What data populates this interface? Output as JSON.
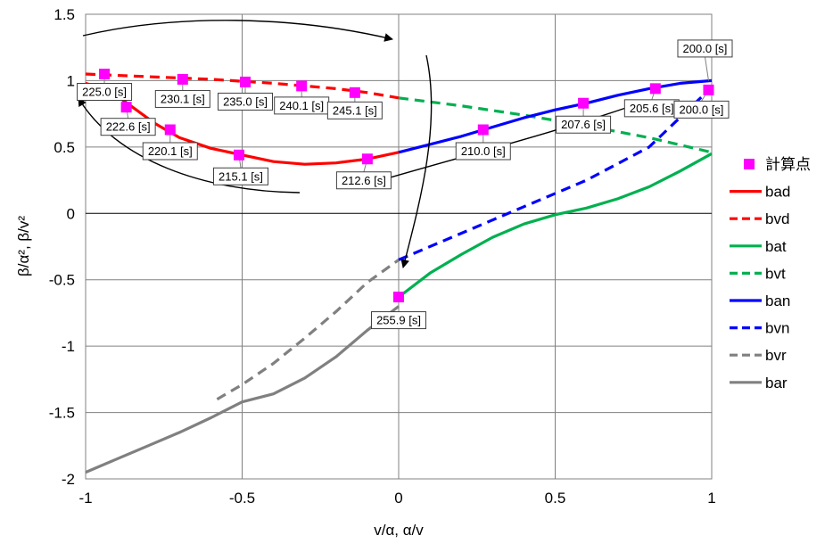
{
  "chart_data": {
    "type": "line",
    "xlabel": "v/α, α/v",
    "ylabel": "β/α², β/v²",
    "xlim": [
      -1,
      1
    ],
    "ylim": [
      -2,
      1.5
    ],
    "xticks": [
      -1,
      -0.5,
      0,
      0.5,
      1
    ],
    "yticks": [
      -2,
      -1.5,
      -1,
      -0.5,
      0,
      0.5,
      1,
      1.5
    ],
    "xtick_labels": [
      "-1",
      "-0.5",
      "0",
      "0.5",
      "1"
    ],
    "ytick_labels": [
      "-2",
      "-1.5",
      "-1",
      "-0.5",
      "0",
      "0.5",
      "1",
      "1.5"
    ],
    "grid": true,
    "legend_position": "right",
    "series": [
      {
        "name": "bad",
        "color": "#ff0000",
        "dash": "solid",
        "x": [
          -1,
          -0.92,
          -0.85,
          -0.78,
          -0.7,
          -0.6,
          -0.5,
          -0.4,
          -0.3,
          -0.2,
          -0.1,
          0
        ],
        "y": [
          0.98,
          0.92,
          0.8,
          0.68,
          0.57,
          0.49,
          0.44,
          0.39,
          0.37,
          0.38,
          0.41,
          0.46
        ]
      },
      {
        "name": "bvd",
        "color": "#ff0000",
        "dash": "dashed",
        "x": [
          -1,
          -0.8,
          -0.6,
          -0.4,
          -0.2,
          -0.1,
          0
        ],
        "y": [
          1.05,
          1.03,
          1.01,
          0.98,
          0.94,
          0.91,
          0.87
        ]
      },
      {
        "name": "bat",
        "color": "#00b050",
        "dash": "solid",
        "x": [
          0,
          0.1,
          0.2,
          0.3,
          0.4,
          0.5,
          0.6,
          0.7,
          0.8,
          0.9,
          1
        ],
        "y": [
          -0.63,
          -0.45,
          -0.31,
          -0.18,
          -0.08,
          -0.01,
          0.04,
          0.11,
          0.2,
          0.32,
          0.45
        ]
      },
      {
        "name": "bvt",
        "color": "#00b050",
        "dash": "dashed",
        "x": [
          0,
          0.2,
          0.4,
          0.6,
          0.8,
          1
        ],
        "y": [
          0.87,
          0.81,
          0.74,
          0.66,
          0.57,
          0.46
        ]
      },
      {
        "name": "ban",
        "color": "#0000ff",
        "dash": "solid",
        "x": [
          0,
          0.1,
          0.2,
          0.3,
          0.4,
          0.5,
          0.6,
          0.7,
          0.8,
          0.9,
          1
        ],
        "y": [
          0.46,
          0.52,
          0.58,
          0.65,
          0.72,
          0.78,
          0.83,
          0.89,
          0.94,
          0.98,
          1.0
        ]
      },
      {
        "name": "bvn",
        "color": "#0000ff",
        "dash": "dashed",
        "x": [
          0,
          0.2,
          0.4,
          0.6,
          0.8,
          1
        ],
        "y": [
          -0.35,
          -0.15,
          0.05,
          0.25,
          0.5,
          0.95
        ]
      },
      {
        "name": "bvr",
        "color": "#808080",
        "dash": "dashed",
        "x": [
          -0.58,
          -0.5,
          -0.4,
          -0.3,
          -0.2,
          -0.1,
          0
        ],
        "y": [
          -1.4,
          -1.29,
          -1.13,
          -0.94,
          -0.74,
          -0.52,
          -0.35
        ]
      },
      {
        "name": "bar",
        "color": "#808080",
        "dash": "solid",
        "x": [
          -1,
          -0.9,
          -0.8,
          -0.7,
          -0.6,
          -0.5,
          -0.4,
          -0.3,
          -0.2,
          -0.1,
          0
        ],
        "y": [
          -1.95,
          -1.85,
          -1.75,
          -1.65,
          -1.54,
          -1.42,
          -1.36,
          -1.24,
          -1.08,
          -0.88,
          -0.7
        ]
      }
    ],
    "points": {
      "name": "計算点",
      "color": "#ff00ff",
      "x": [
        -0.94,
        -0.87,
        -0.73,
        -0.69,
        -0.51,
        -0.49,
        -0.31,
        -0.14,
        -0.1,
        0,
        0.27,
        0.59,
        0.82,
        0.99
      ],
      "y": [
        1.05,
        0.8,
        0.63,
        1.01,
        0.44,
        0.99,
        0.96,
        0.91,
        0.41,
        -0.63,
        0.63,
        0.83,
        0.94,
        0.93
      ]
    },
    "annotations": [
      {
        "text": "225.0 [s]",
        "x": -0.94,
        "y": 1.05
      },
      {
        "text": "222.6 [s]",
        "x": -0.87,
        "y": 0.8
      },
      {
        "text": "220.1 [s]",
        "x": -0.73,
        "y": 0.63
      },
      {
        "text": "230.1 [s]",
        "x": -0.69,
        "y": 1.01
      },
      {
        "text": "215.1 [s]",
        "x": -0.51,
        "y": 0.44
      },
      {
        "text": "235.0 [s]",
        "x": -0.49,
        "y": 0.99
      },
      {
        "text": "240.1 [s]",
        "x": -0.31,
        "y": 0.96
      },
      {
        "text": "245.1 [s]",
        "x": -0.14,
        "y": 0.91
      },
      {
        "text": "212.6 [s]",
        "x": -0.1,
        "y": 0.41
      },
      {
        "text": "255.9 [s]",
        "x": 0,
        "y": -0.63
      },
      {
        "text": "210.0 [s]",
        "x": 0.27,
        "y": 0.63
      },
      {
        "text": "207.6 [s]",
        "x": 0.59,
        "y": 0.83
      },
      {
        "text": "205.6 [s]",
        "x": 0.82,
        "y": 0.94
      },
      {
        "text": "200.0 [s]",
        "x": 0.99,
        "y": 1.0
      },
      {
        "text": "200.0 [s]",
        "x": 0.99,
        "y": 0.93
      }
    ]
  }
}
